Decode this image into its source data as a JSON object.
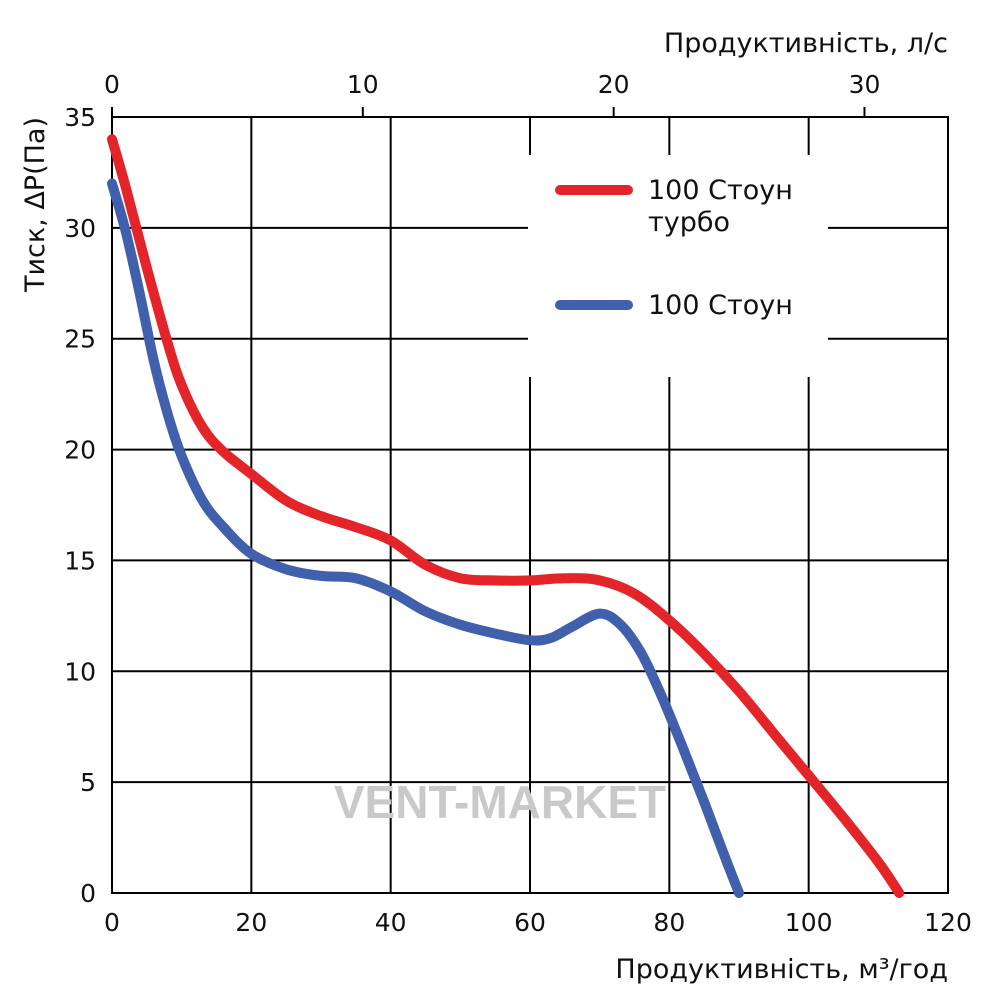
{
  "chart_data": {
    "type": "line",
    "title": "",
    "xlabel": "Продуктивність, м³/год",
    "x2label": "Продуктивність, л/с",
    "ylabel": "Тиск, ΔP(Па)",
    "xlim": [
      0,
      120
    ],
    "ylim": [
      0,
      35
    ],
    "x2lim": [
      0,
      33.33
    ],
    "x_ticks": [
      0,
      20,
      40,
      60,
      80,
      100,
      120
    ],
    "y_ticks": [
      0,
      5,
      10,
      15,
      20,
      25,
      30,
      35
    ],
    "x2_ticks": [
      0,
      10,
      20,
      30
    ],
    "grid": true,
    "legend_position": "top-right",
    "series": [
      {
        "name": "100 Стоун турбо",
        "name_lines": [
          "100 Стоун",
          "турбо"
        ],
        "color": "#e32428",
        "x": [
          0,
          2,
          5,
          8,
          10,
          13,
          16,
          20,
          25,
          30,
          35,
          40,
          45,
          50,
          55,
          60,
          65,
          70,
          75,
          80,
          85,
          90,
          95,
          100,
          105,
          110,
          113
        ],
        "y": [
          34,
          31.8,
          28.2,
          24.8,
          22.9,
          21,
          19.9,
          18.9,
          17.7,
          17,
          16.5,
          15.9,
          14.8,
          14.2,
          14.1,
          14.1,
          14.2,
          14.1,
          13.5,
          12.3,
          10.8,
          9.1,
          7.2,
          5.3,
          3.4,
          1.4,
          0
        ]
      },
      {
        "name": "100 Стоун",
        "name_lines": [
          "100 Стоун"
        ],
        "color": "#4060ad",
        "x": [
          0,
          2,
          4,
          6,
          8,
          10,
          13,
          16,
          20,
          25,
          30,
          35,
          40,
          45,
          50,
          55,
          60,
          63,
          66,
          70,
          73,
          76,
          79,
          82,
          85,
          88,
          90
        ],
        "y": [
          32,
          29.8,
          27,
          24,
          21.6,
          19.7,
          17.7,
          16.5,
          15.3,
          14.6,
          14.3,
          14.2,
          13.6,
          12.7,
          12.1,
          11.7,
          11.4,
          11.5,
          12,
          12.6,
          12.1,
          10.8,
          8.8,
          6.5,
          4.1,
          1.6,
          0
        ]
      }
    ],
    "watermark": "VENT-MARKET"
  }
}
